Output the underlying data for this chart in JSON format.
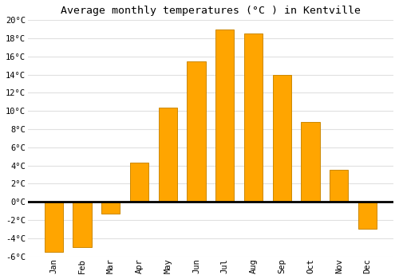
{
  "title": "Average monthly temperatures (°C ) in Kentville",
  "months": [
    "Jan",
    "Feb",
    "Mar",
    "Apr",
    "May",
    "Jun",
    "Jul",
    "Aug",
    "Sep",
    "Oct",
    "Nov",
    "Dec"
  ],
  "values": [
    -5.5,
    -5.0,
    -1.3,
    4.3,
    10.4,
    15.5,
    19.0,
    18.5,
    14.0,
    8.8,
    3.5,
    -3.0
  ],
  "bar_color": "#FFA500",
  "bar_edge_color": "#CC8800",
  "ylim": [
    -6,
    20
  ],
  "yticks": [
    -6,
    -4,
    -2,
    0,
    2,
    4,
    6,
    8,
    10,
    12,
    14,
    16,
    18,
    20
  ],
  "ytick_labels": [
    "-6°C",
    "-4°C",
    "-2°C",
    "0°C",
    "2°C",
    "4°C",
    "6°C",
    "8°C",
    "10°C",
    "12°C",
    "14°C",
    "16°C",
    "18°C",
    "20°C"
  ],
  "plot_bg_color": "#ffffff",
  "fig_bg_color": "#ffffff",
  "grid_color": "#e0e0e0",
  "zero_line_color": "#000000",
  "title_fontsize": 9.5,
  "tick_fontsize": 7.5,
  "bar_width": 0.65
}
